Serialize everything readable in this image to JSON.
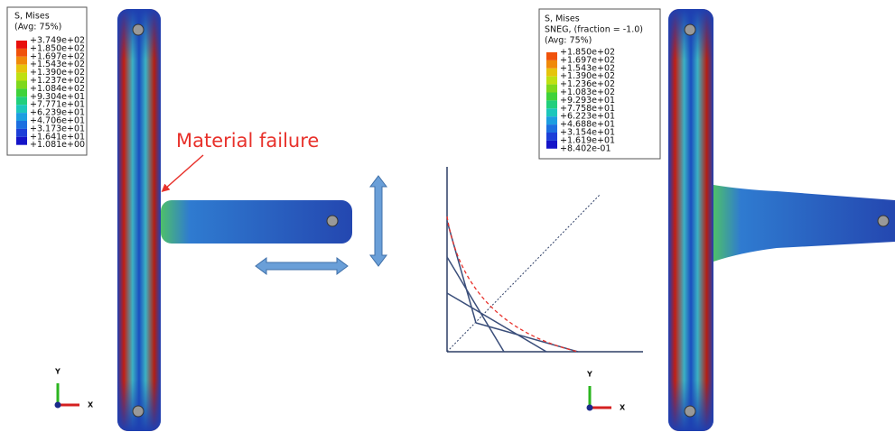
{
  "left_legend": {
    "title": [
      "S, Mises",
      "(Avg: 75%)"
    ],
    "labels": [
      "+3.749e+02",
      "+1.850e+02",
      "+1.697e+02",
      "+1.543e+02",
      "+1.390e+02",
      "+1.237e+02",
      "+1.084e+02",
      "+9.304e+01",
      "+7.771e+01",
      "+6.239e+01",
      "+4.706e+01",
      "+3.173e+01",
      "+1.641e+01",
      "+1.081e+00"
    ]
  },
  "right_legend": {
    "title": [
      "S, Mises",
      "SNEG, (fraction = -1.0)",
      "(Avg: 75%)"
    ],
    "labels": [
      "+1.850e+02",
      "+1.697e+02",
      "+1.543e+02",
      "+1.390e+02",
      "+1.236e+02",
      "+1.083e+02",
      "+9.293e+01",
      "+7.758e+01",
      "+6.223e+01",
      "+4.688e+01",
      "+3.154e+01",
      "+1.619e+01",
      "+8.402e-01"
    ]
  },
  "annotation": "Material failure",
  "left_triad": {
    "y": "Y",
    "x": "X"
  },
  "right_triad": {
    "y": "Y",
    "x": "X"
  }
}
